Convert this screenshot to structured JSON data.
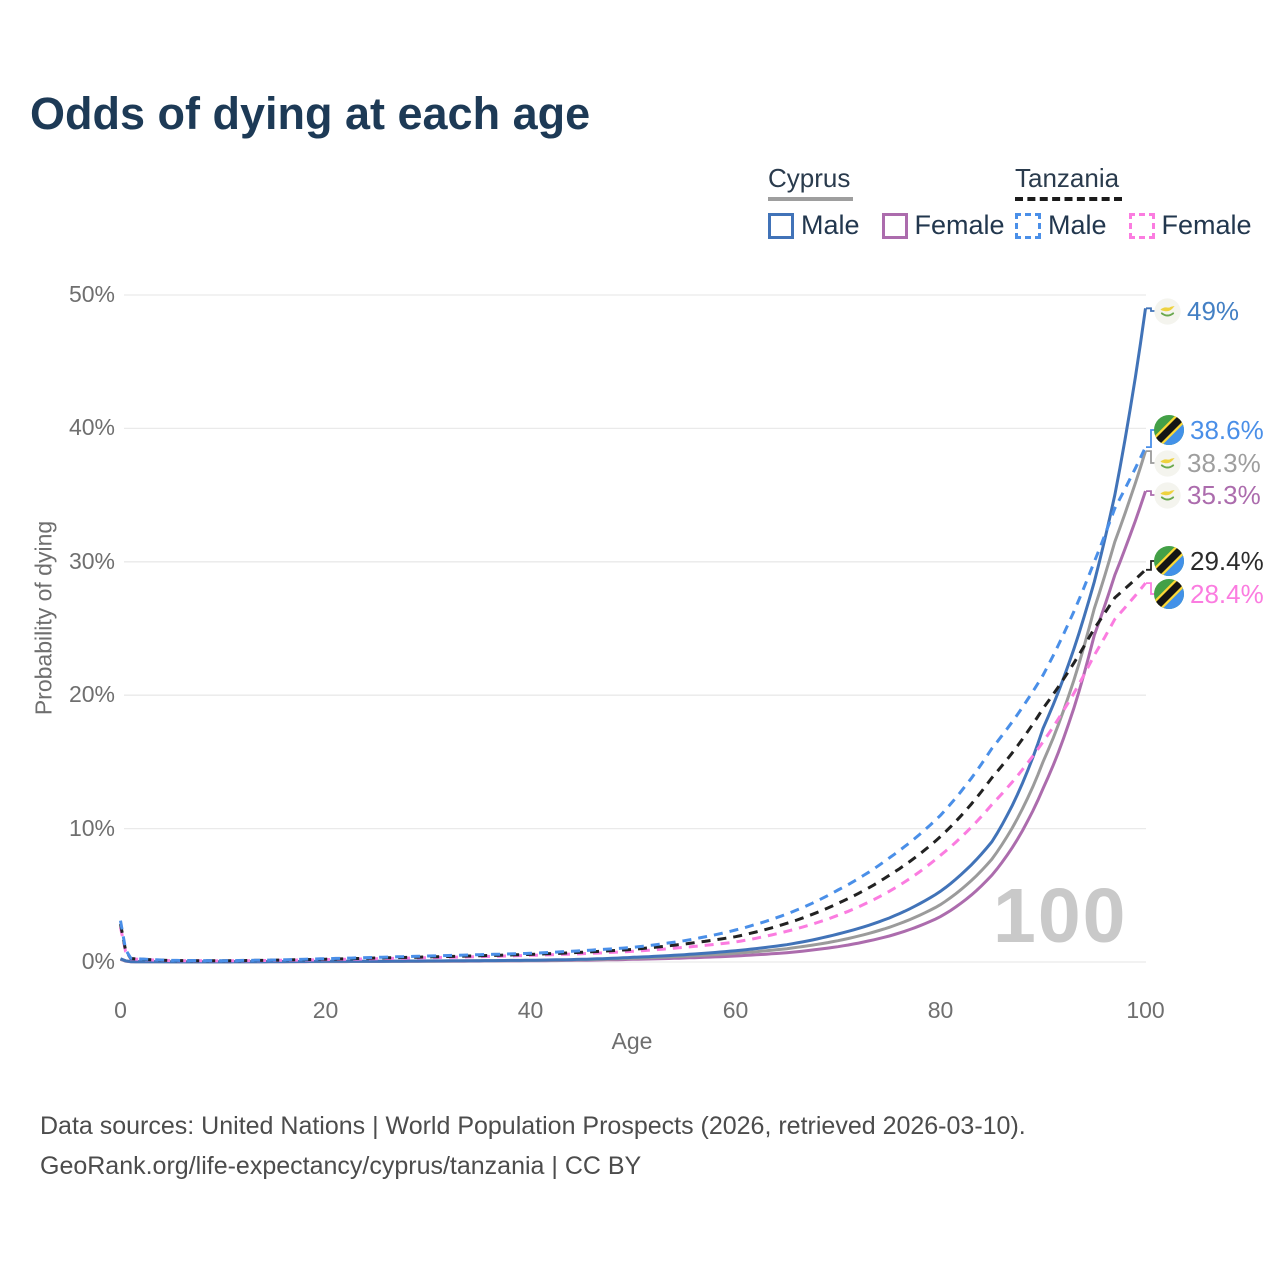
{
  "title": "Odds of dying at each age",
  "legend": {
    "groups": [
      {
        "country": "Cyprus",
        "line_style": "solid",
        "underline_color": "#9e9e9e",
        "items": [
          {
            "label": "Male",
            "color": "#4173b8"
          },
          {
            "label": "Female",
            "color": "#ac6cad"
          }
        ]
      },
      {
        "country": "Tanzania",
        "line_style": "dashed",
        "underline_color": "#1b1b1b",
        "items": [
          {
            "label": "Male",
            "color": "#4a8fe8"
          },
          {
            "label": "Female",
            "color": "#fb7ce0"
          }
        ]
      }
    ]
  },
  "chart_data": {
    "type": "line",
    "title": "Odds of dying at each age",
    "xlabel": "Age",
    "ylabel": "Probability of dying",
    "xlim": [
      0,
      100
    ],
    "ylim": [
      0,
      50
    ],
    "x_ticks": [
      0,
      20,
      40,
      60,
      80,
      100
    ],
    "y_tick_labels": [
      "0%",
      "10%",
      "20%",
      "30%",
      "40%",
      "50%"
    ],
    "grid": "horizontal-only",
    "legend_position": "top-right",
    "watermark": "100",
    "ages": [
      0,
      1,
      5,
      10,
      15,
      20,
      25,
      30,
      35,
      40,
      45,
      50,
      55,
      60,
      65,
      70,
      75,
      80,
      85,
      90,
      95,
      97,
      100
    ],
    "series": [
      {
        "name": "Cyprus Male",
        "country": "Cyprus",
        "sex": "Male",
        "style": "solid",
        "color": "#4173b8",
        "flag": "cyprus",
        "end_label": "49%",
        "end_label_color": "#4480c4",
        "values": [
          0.25,
          0.03,
          0.01,
          0.01,
          0.03,
          0.05,
          0.06,
          0.08,
          0.1,
          0.13,
          0.2,
          0.35,
          0.55,
          0.85,
          1.3,
          2.1,
          3.3,
          5.3,
          9.0,
          17.5,
          28.5,
          35.0,
          49.0
        ]
      },
      {
        "name": "Cyprus Female",
        "country": "Cyprus",
        "sex": "Female",
        "style": "solid",
        "color": "#ac6cad",
        "flag": "cyprus",
        "end_label": "35.3%",
        "end_label_color": "#ac6cad",
        "values": [
          0.2,
          0.02,
          0.01,
          0.01,
          0.02,
          0.03,
          0.04,
          0.05,
          0.07,
          0.09,
          0.13,
          0.2,
          0.3,
          0.45,
          0.7,
          1.15,
          1.95,
          3.4,
          6.5,
          13.0,
          24.5,
          29.0,
          35.3
        ]
      },
      {
        "name": "Cyprus Combined",
        "country": "Cyprus",
        "sex": "Both",
        "style": "solid",
        "color": "#9b9b9b",
        "flag": "cyprus",
        "end_label": "38.3%",
        "end_label_color": "#9e9e9e",
        "values": [
          0.22,
          0.03,
          0.01,
          0.01,
          0.03,
          0.04,
          0.05,
          0.06,
          0.09,
          0.11,
          0.17,
          0.28,
          0.43,
          0.65,
          1.0,
          1.6,
          2.6,
          4.3,
          7.7,
          15.0,
          26.5,
          31.5,
          38.3
        ]
      },
      {
        "name": "Tanzania Male",
        "country": "Tanzania",
        "sex": "Male",
        "style": "dashed",
        "color": "#4a8fe8",
        "flag": "tanzania",
        "end_label": "38.6%",
        "end_label_color": "#4a8fe8",
        "values": [
          3.1,
          0.28,
          0.12,
          0.1,
          0.15,
          0.25,
          0.35,
          0.45,
          0.55,
          0.65,
          0.85,
          1.1,
          1.6,
          2.4,
          3.6,
          5.4,
          7.8,
          11.0,
          16.0,
          21.5,
          30.0,
          34.0,
          38.6
        ]
      },
      {
        "name": "Tanzania Female",
        "country": "Tanzania",
        "sex": "Female",
        "style": "dashed",
        "color": "#fb7ce0",
        "flag": "tanzania",
        "end_label": "28.4%",
        "end_label_color": "#fb7ce0",
        "values": [
          2.6,
          0.24,
          0.1,
          0.08,
          0.12,
          0.18,
          0.25,
          0.32,
          0.4,
          0.5,
          0.62,
          0.8,
          1.1,
          1.5,
          2.3,
          3.5,
          5.3,
          8.0,
          11.8,
          16.5,
          23.0,
          25.7,
          28.4
        ]
      },
      {
        "name": "Tanzania Combined",
        "country": "Tanzania",
        "sex": "Both",
        "style": "dashed",
        "color": "#222222",
        "flag": "tanzania",
        "end_label": "29.4%",
        "end_label_color": "#2b2b2b",
        "values": [
          2.85,
          0.26,
          0.11,
          0.09,
          0.14,
          0.21,
          0.3,
          0.38,
          0.47,
          0.57,
          0.73,
          0.95,
          1.35,
          1.9,
          2.9,
          4.4,
          6.5,
          9.4,
          13.8,
          19.0,
          25.0,
          27.3,
          29.4
        ]
      }
    ]
  },
  "footer": {
    "line1": "Data sources: United Nations | World Population Prospects (2026, retrieved 2026-03-10).",
    "line2": "GeoRank.org/life-expectancy/cyprus/tanzania | CC BY"
  }
}
